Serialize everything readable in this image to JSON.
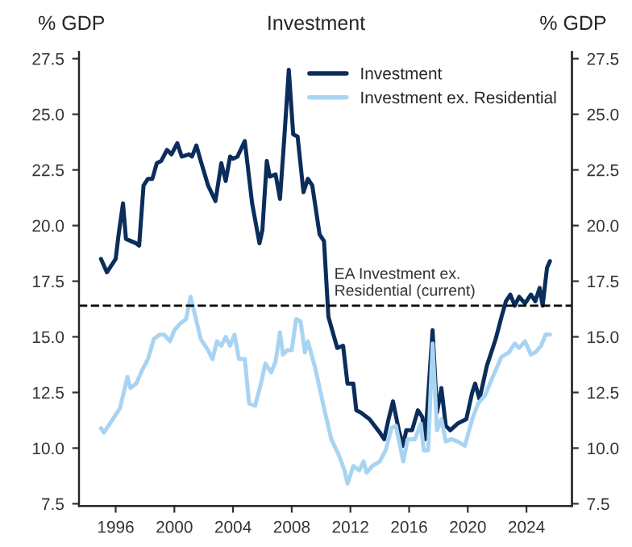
{
  "chart_data": {
    "type": "line",
    "title": "Investment",
    "ylabel": "% GDP",
    "y2label": "% GDP",
    "xlim": [
      1993.5,
      2027.1
    ],
    "xticks": [
      1996,
      2000,
      2004,
      2008,
      2012,
      2016,
      2020,
      2024
    ],
    "ylim": [
      7.4,
      27.8
    ],
    "yticks": [
      7.5,
      {
        "value": 10,
        "label": "10.0"
      },
      12.5,
      {
        "value": 15,
        "label": "15.0"
      },
      17.5,
      {
        "value": 20,
        "label": "20.0"
      },
      22.5,
      {
        "value": 25,
        "label": "25.0"
      },
      27.5
    ],
    "y2lim": [
      7.4,
      27.8
    ],
    "y2ticks": [
      7.5,
      {
        "value": 10,
        "label": "10.0"
      },
      12.5,
      {
        "value": 15,
        "label": "15.0"
      },
      17.5,
      {
        "value": 20,
        "label": "20.0"
      },
      22.5,
      {
        "value": 25,
        "label": "25.0"
      },
      27.5
    ],
    "grid": false,
    "legend": "top right",
    "marker": "none",
    "line_style": "solid",
    "ref_lines": [
      {
        "axis": "y",
        "value": 16.4,
        "label": "EA Investment ex.\nResidential (current)",
        "color": "#000000",
        "line_style": "dashed"
      }
    ],
    "series": [
      {
        "name": "Investment",
        "color": "#0b2d5b",
        "x": [
          1995.0,
          1995.4,
          1996.0,
          1996.2,
          1996.5,
          1996.7,
          1997.4,
          1997.6,
          1997.9,
          1998.2,
          1998.5,
          1998.8,
          1999.1,
          1999.5,
          1999.8,
          2000.2,
          2000.5,
          2001.0,
          2001.2,
          2001.5,
          2001.8,
          2002.3,
          2002.8,
          2003.2,
          2003.5,
          2003.8,
          2004.0,
          2004.3,
          2004.8,
          2005.3,
          2005.8,
          2006.0,
          2006.3,
          2006.5,
          2006.9,
          2007.2,
          2007.5,
          2007.8,
          2008.1,
          2008.4,
          2008.8,
          2009.1,
          2009.4,
          2009.9,
          2010.2,
          2010.5,
          2011.1,
          2011.5,
          2011.8,
          2012.2,
          2012.4,
          2012.7,
          2013.3,
          2014.0,
          2014.3,
          2014.6,
          2014.9,
          2015.3,
          2015.6,
          2015.8,
          2016.2,
          2016.6,
          2016.9,
          2017.1,
          2017.6,
          2017.9,
          2018.2,
          2018.5,
          2018.8,
          2019.3,
          2019.9,
          2020.3,
          2020.5,
          2020.8,
          2021.3,
          2021.9,
          2022.3,
          2022.6,
          2022.9,
          2023.2,
          2023.5,
          2023.9,
          2024.3,
          2024.6,
          2024.9,
          2025.1,
          2025.4,
          2025.6
        ],
        "values": [
          18.5,
          17.9,
          18.5,
          19.6,
          21.0,
          19.4,
          19.2,
          19.1,
          21.8,
          22.1,
          22.1,
          22.8,
          22.9,
          23.4,
          23.2,
          23.7,
          23.1,
          23.2,
          23.1,
          23.6,
          22.9,
          21.8,
          21.1,
          22.8,
          22.0,
          23.1,
          23.0,
          23.1,
          23.8,
          21.0,
          19.2,
          19.8,
          22.9,
          22.2,
          22.3,
          21.2,
          24.0,
          27.0,
          24.1,
          24.0,
          21.5,
          22.1,
          21.8,
          19.6,
          19.3,
          15.9,
          14.5,
          14.6,
          12.9,
          12.9,
          11.7,
          11.6,
          11.3,
          10.7,
          10.4,
          11.3,
          12.1,
          10.8,
          10.1,
          10.8,
          10.8,
          11.7,
          11.4,
          10.4,
          15.3,
          11.6,
          12.7,
          11.0,
          10.8,
          11.1,
          11.3,
          12.5,
          12.9,
          12.2,
          13.7,
          14.9,
          15.9,
          16.6,
          16.9,
          16.4,
          16.8,
          16.5,
          16.9,
          16.6,
          17.2,
          16.4,
          18.1,
          18.4
        ]
      },
      {
        "name": "Investment ex. Residential",
        "color": "#a8d4f2",
        "x": [
          1995.0,
          1995.2,
          1995.8,
          1996.3,
          1996.8,
          1997.0,
          1997.4,
          1997.8,
          1998.2,
          1998.6,
          1999.0,
          1999.3,
          1999.7,
          2000.0,
          2000.4,
          2000.8,
          2001.1,
          2001.4,
          2001.8,
          2002.3,
          2002.6,
          2002.9,
          2003.2,
          2003.5,
          2003.8,
          2004.1,
          2004.4,
          2004.8,
          2005.1,
          2005.5,
          2005.9,
          2006.2,
          2006.6,
          2006.9,
          2007.2,
          2007.4,
          2007.7,
          2008.0,
          2008.3,
          2008.6,
          2008.9,
          2009.1,
          2009.6,
          2010.2,
          2010.7,
          2011.2,
          2011.6,
          2011.8,
          2012.2,
          2012.6,
          2012.9,
          2013.1,
          2013.5,
          2014.0,
          2014.4,
          2014.8,
          2015.1,
          2015.6,
          2015.9,
          2016.4,
          2016.8,
          2017.0,
          2017.3,
          2017.6,
          2017.9,
          2018.2,
          2018.5,
          2018.9,
          2019.3,
          2019.8,
          2020.3,
          2020.7,
          2021.2,
          2021.7,
          2022.3,
          2022.8,
          2023.2,
          2023.5,
          2023.9,
          2024.3,
          2024.6,
          2025.0,
          2025.3,
          2025.6
        ],
        "values": [
          10.9,
          10.7,
          11.3,
          11.8,
          13.2,
          12.7,
          12.9,
          13.5,
          14.0,
          14.9,
          15.1,
          15.1,
          14.8,
          15.3,
          15.6,
          15.8,
          16.8,
          16.0,
          14.9,
          14.4,
          14.0,
          14.8,
          14.6,
          15.0,
          14.6,
          15.1,
          14.0,
          14.0,
          12.0,
          11.9,
          12.9,
          13.8,
          13.4,
          13.9,
          15.2,
          14.2,
          14.4,
          14.4,
          15.8,
          15.7,
          14.3,
          14.8,
          13.6,
          11.8,
          10.4,
          9.7,
          9.0,
          8.4,
          9.2,
          9.0,
          9.4,
          8.9,
          9.2,
          9.4,
          9.9,
          10.9,
          11.0,
          9.4,
          10.4,
          10.4,
          11.1,
          9.9,
          9.9,
          14.7,
          10.8,
          11.3,
          10.3,
          10.4,
          10.3,
          10.1,
          11.3,
          12.0,
          12.4,
          13.2,
          14.1,
          14.3,
          14.7,
          14.5,
          14.8,
          14.2,
          14.3,
          14.6,
          15.1,
          15.1
        ]
      }
    ]
  }
}
